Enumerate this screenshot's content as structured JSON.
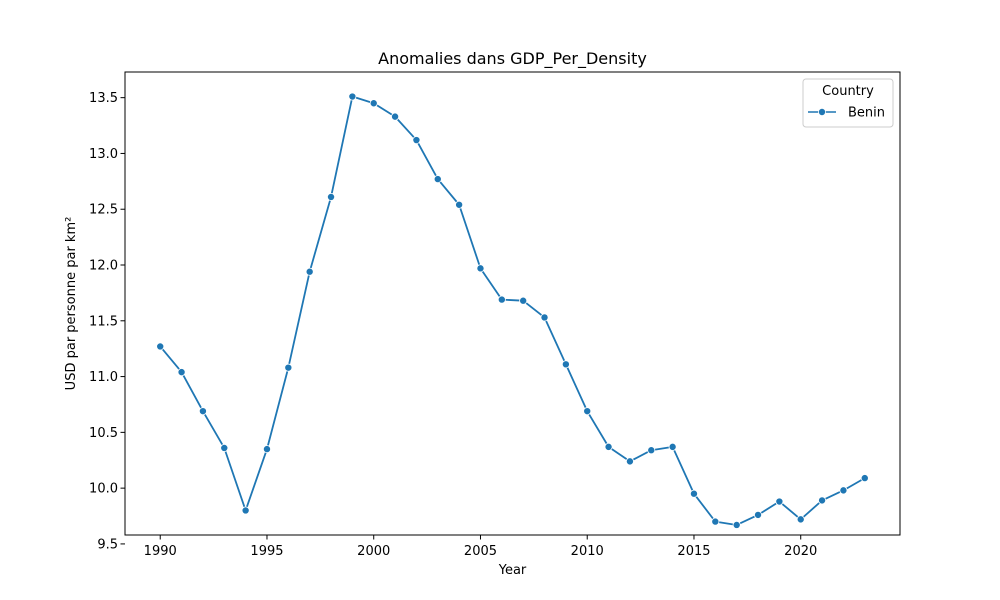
{
  "chart_data": {
    "type": "line",
    "title": "Anomalies dans GDP_Per_Density",
    "xlabel": "Year",
    "ylabel": "USD par personne par km²",
    "xlim": [
      1988.35,
      2024.65
    ],
    "ylim": [
      9.58,
      13.73
    ],
    "x_ticks": [
      "1990",
      "1995",
      "2000",
      "2005",
      "2010",
      "2015",
      "2020"
    ],
    "y_ticks": [
      "9.5",
      "10.0",
      "10.5",
      "11.0",
      "11.5",
      "12.0",
      "12.5",
      "13.0",
      "13.5"
    ],
    "grid": false,
    "legend": {
      "title": "Country",
      "position": "top-right"
    },
    "series": [
      {
        "name": "Benin",
        "color": "#1f77b4",
        "marker": "circle",
        "x": [
          1990,
          1991,
          1992,
          1993,
          1994,
          1995,
          1996,
          1997,
          1998,
          1999,
          2000,
          2001,
          2002,
          2003,
          2004,
          2005,
          2006,
          2007,
          2008,
          2009,
          2010,
          2011,
          2012,
          2013,
          2014,
          2015,
          2016,
          2017,
          2018,
          2019,
          2020,
          2021,
          2022,
          2023
        ],
        "values": [
          11.27,
          11.04,
          10.69,
          10.36,
          9.8,
          10.35,
          11.08,
          11.94,
          12.61,
          13.51,
          13.45,
          13.33,
          13.12,
          12.77,
          12.54,
          11.97,
          11.69,
          11.68,
          11.53,
          11.11,
          10.69,
          10.37,
          10.24,
          10.34,
          10.37,
          9.95,
          9.7,
          9.67,
          9.76,
          9.88,
          9.72,
          9.89,
          9.98,
          10.09
        ]
      }
    ]
  }
}
